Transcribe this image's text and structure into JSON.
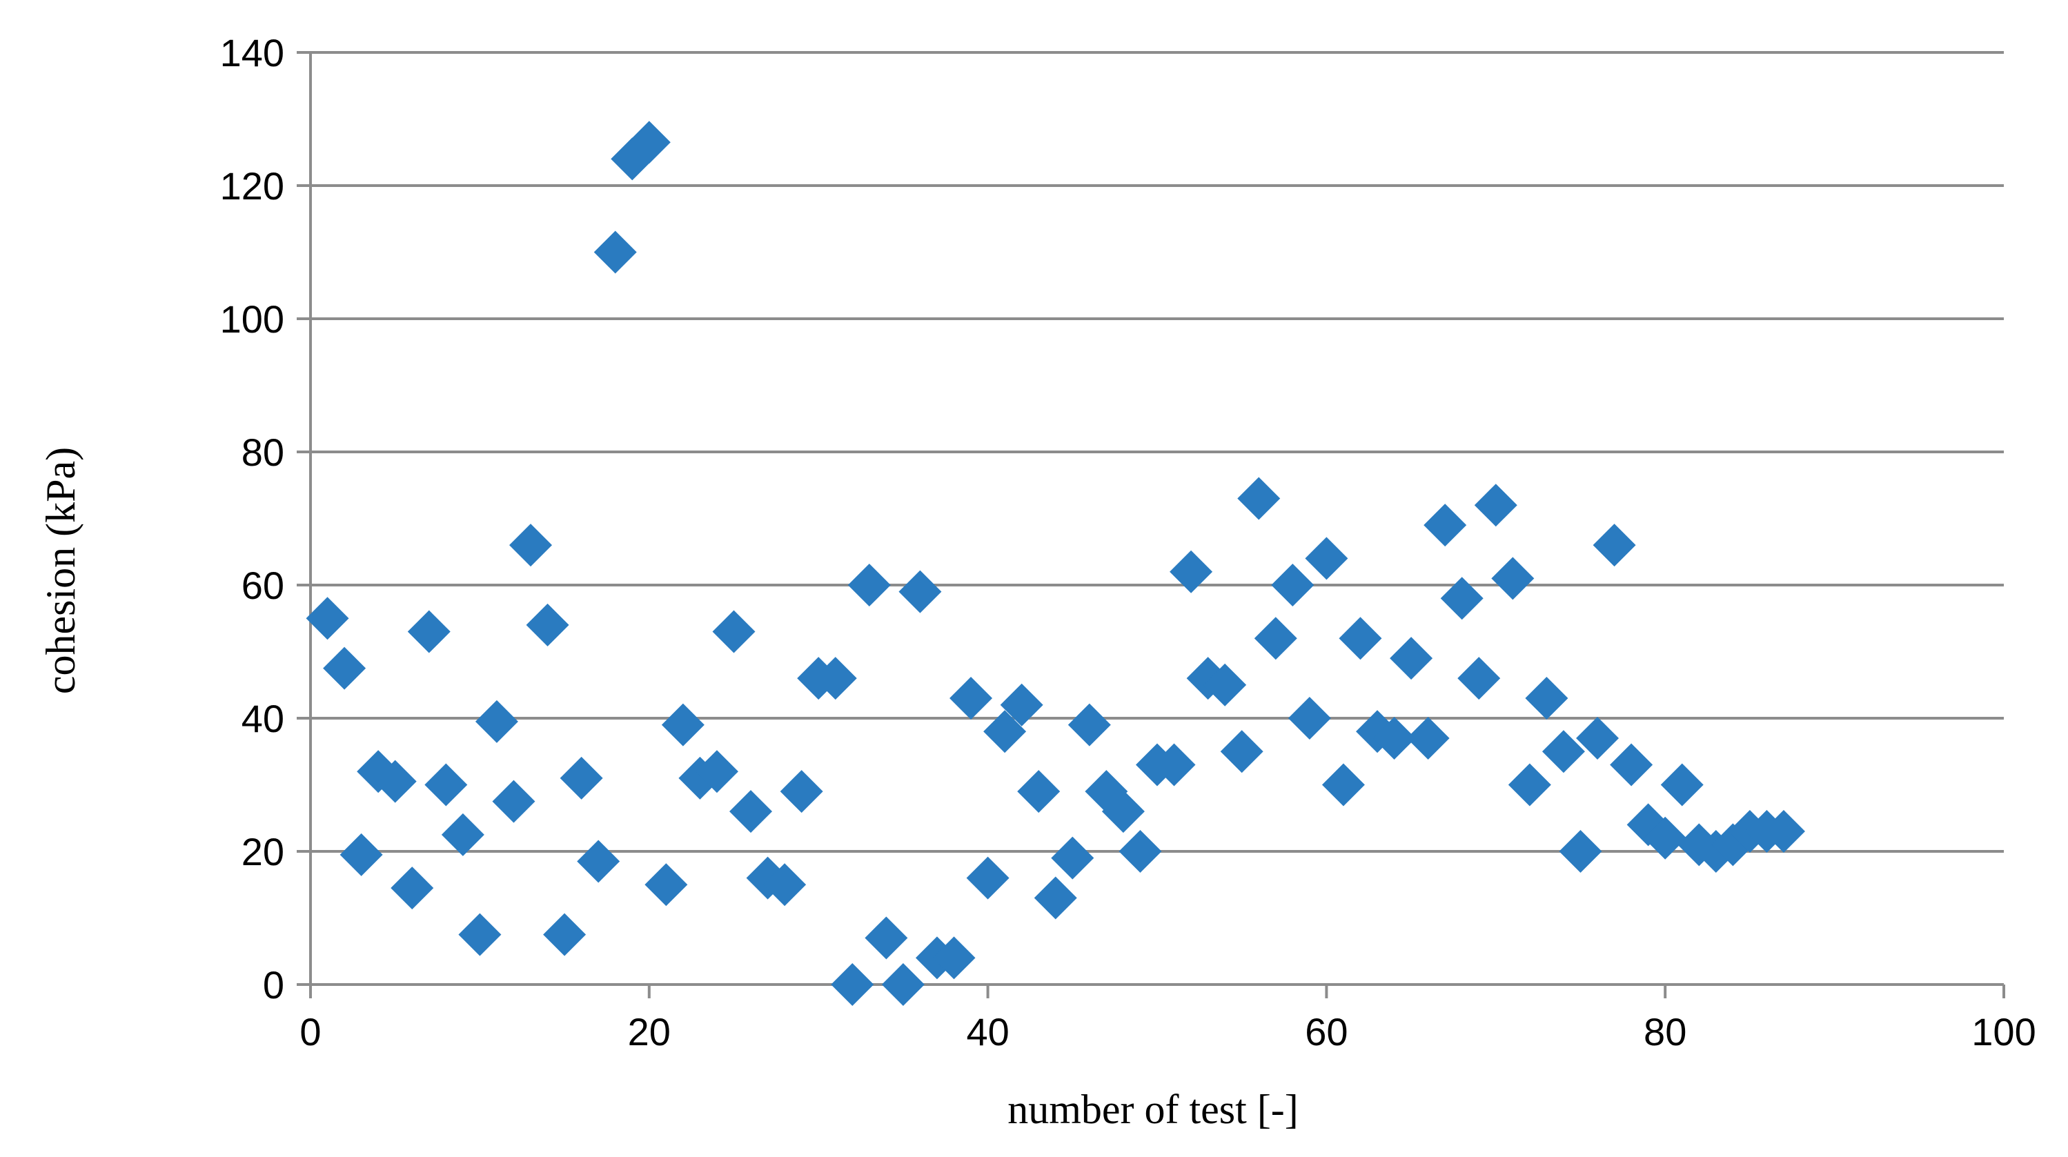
{
  "chart_data": {
    "type": "scatter",
    "xlabel": "number of test [-]",
    "ylabel": "cohesion (kPa)",
    "xlim": [
      0,
      100
    ],
    "ylim": [
      0,
      140
    ],
    "xticks": [
      0,
      20,
      40,
      60,
      80,
      100
    ],
    "yticks": [
      0,
      20,
      40,
      60,
      80,
      100,
      120,
      140
    ],
    "grid": "horizontal",
    "legend": "none",
    "marker": "diamond",
    "color": "#2a7bc0",
    "points": [
      [
        1,
        55
      ],
      [
        2,
        47.5
      ],
      [
        3,
        19.5
      ],
      [
        4,
        32
      ],
      [
        5,
        30.5
      ],
      [
        6,
        14.5
      ],
      [
        7,
        53
      ],
      [
        8,
        30
      ],
      [
        9,
        22.5
      ],
      [
        10,
        7.5
      ],
      [
        11,
        39.5
      ],
      [
        12,
        27.5
      ],
      [
        13,
        66
      ],
      [
        14,
        54
      ],
      [
        15,
        7.5
      ],
      [
        16,
        31
      ],
      [
        17,
        18.5
      ],
      [
        18,
        110
      ],
      [
        19,
        124
      ],
      [
        20,
        126.5
      ],
      [
        21,
        15
      ],
      [
        22,
        39
      ],
      [
        23,
        31
      ],
      [
        24,
        32
      ],
      [
        25,
        53
      ],
      [
        26,
        26
      ],
      [
        27,
        16
      ],
      [
        28,
        15
      ],
      [
        29,
        29
      ],
      [
        30,
        46
      ],
      [
        31,
        46
      ],
      [
        32,
        0
      ],
      [
        33,
        60
      ],
      [
        34,
        7
      ],
      [
        35,
        0
      ],
      [
        36,
        59
      ],
      [
        37,
        4
      ],
      [
        38,
        4
      ],
      [
        39,
        43
      ],
      [
        40,
        16
      ],
      [
        41,
        38
      ],
      [
        42,
        42
      ],
      [
        43,
        29
      ],
      [
        44,
        13
      ],
      [
        45,
        19
      ],
      [
        46,
        39
      ],
      [
        47,
        29
      ],
      [
        48,
        26
      ],
      [
        49,
        20
      ],
      [
        50,
        33
      ],
      [
        51,
        33
      ],
      [
        52,
        62
      ],
      [
        53,
        46
      ],
      [
        54,
        45
      ],
      [
        55,
        35
      ],
      [
        56,
        73
      ],
      [
        57,
        52
      ],
      [
        58,
        60
      ],
      [
        59,
        40
      ],
      [
        60,
        64
      ],
      [
        61,
        30
      ],
      [
        62,
        52
      ],
      [
        63,
        38
      ],
      [
        64,
        37
      ],
      [
        65,
        49
      ],
      [
        66,
        37
      ],
      [
        67,
        69
      ],
      [
        68,
        58
      ],
      [
        69,
        46
      ],
      [
        70,
        72
      ],
      [
        71,
        61
      ],
      [
        72,
        30
      ],
      [
        73,
        43
      ],
      [
        74,
        35
      ],
      [
        75,
        20
      ],
      [
        76,
        37
      ],
      [
        77,
        66
      ],
      [
        78,
        33
      ],
      [
        79,
        24
      ],
      [
        80,
        22
      ],
      [
        81,
        30
      ],
      [
        82,
        21
      ],
      [
        83,
        20
      ],
      [
        84,
        21
      ],
      [
        85,
        23
      ],
      [
        86,
        23
      ],
      [
        87,
        23
      ]
    ]
  }
}
